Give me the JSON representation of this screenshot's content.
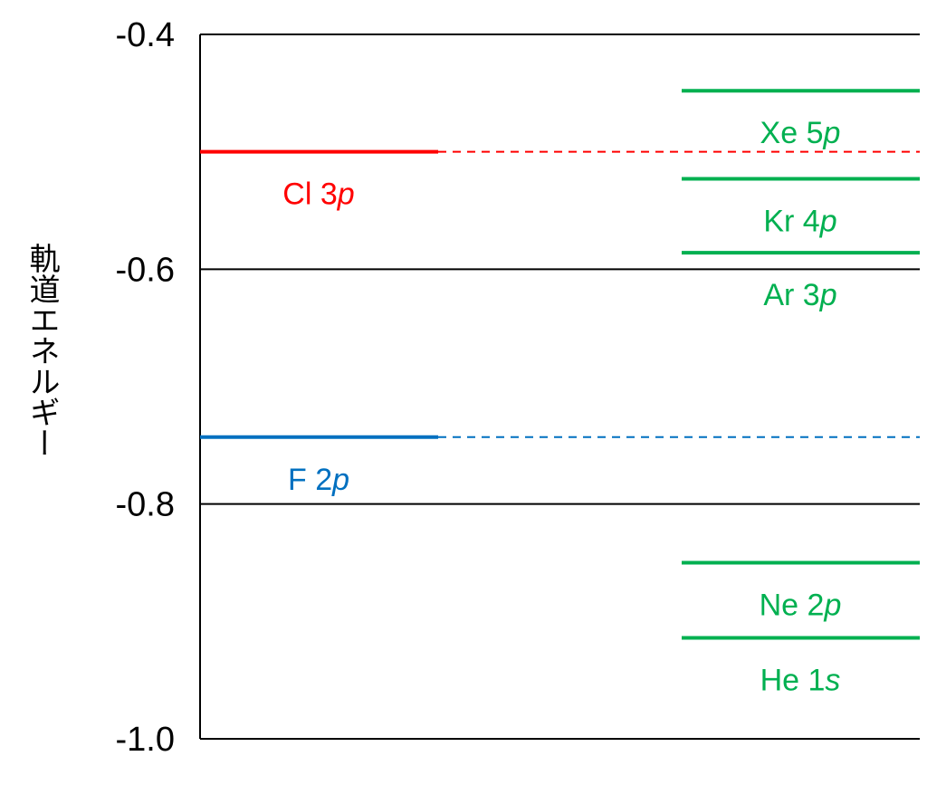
{
  "chart_data": {
    "type": "energy-level-diagram",
    "ylabel": "軌道エネルギー",
    "ylim": [
      -1.0,
      -0.4
    ],
    "yticks": [
      {
        "value": -0.4,
        "label": "-0.4"
      },
      {
        "value": -0.6,
        "label": "-0.6"
      },
      {
        "value": -0.8,
        "label": "-0.8"
      },
      {
        "value": -1.0,
        "label": "-1.0"
      }
    ],
    "grid": true,
    "levels": [
      {
        "element": "Cl",
        "orbital": "3",
        "orbital_letter": "p",
        "energy": -0.5,
        "color": "#ff0000",
        "column": "left",
        "dashed_extension": true
      },
      {
        "element": "F",
        "orbital": "2",
        "orbital_letter": "p",
        "energy": -0.743,
        "color": "#0070c0",
        "column": "left",
        "dashed_extension": true
      },
      {
        "element": "Xe",
        "orbital": "5",
        "orbital_letter": "p",
        "energy": -0.448,
        "color": "#00b050",
        "column": "right",
        "dashed_extension": false
      },
      {
        "element": "Kr",
        "orbital": "4",
        "orbital_letter": "p",
        "energy": -0.523,
        "color": "#00b050",
        "column": "right",
        "dashed_extension": false
      },
      {
        "element": "Ar",
        "orbital": "3",
        "orbital_letter": "p",
        "energy": -0.586,
        "color": "#00b050",
        "column": "right",
        "dashed_extension": false
      },
      {
        "element": "Ne",
        "orbital": "2",
        "orbital_letter": "p",
        "energy": -0.85,
        "color": "#00b050",
        "column": "right",
        "dashed_extension": false
      },
      {
        "element": "He",
        "orbital": "1",
        "orbital_letter": "s",
        "energy": -0.914,
        "color": "#00b050",
        "column": "right",
        "dashed_extension": false
      }
    ]
  }
}
